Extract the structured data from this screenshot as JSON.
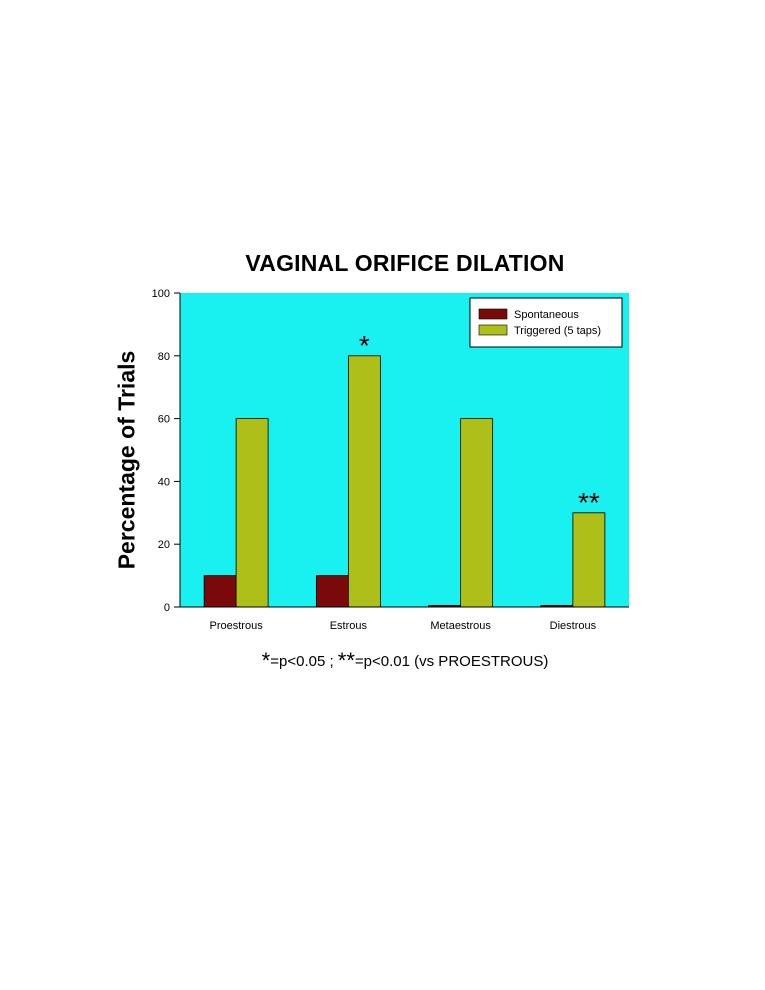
{
  "chart_data": {
    "type": "bar",
    "title": "VAGINAL ORIFICE DILATION",
    "xlabel": "",
    "ylabel": "Percentage of Trials",
    "categories": [
      "Proestrous",
      "Estrous",
      "Metaestrous",
      "Diestrous"
    ],
    "series": [
      {
        "name": "Spontaneous",
        "color": "#7a0a0a",
        "values": [
          10,
          10,
          0.5,
          0.5
        ]
      },
      {
        "name": "Triggered (5 taps)",
        "color": "#aebf1a",
        "values": [
          60,
          80,
          60,
          30
        ]
      }
    ],
    "ylim": [
      0,
      100
    ],
    "yticks": [
      0,
      20,
      40,
      60,
      80,
      100
    ],
    "plot_background": "#19f0f0",
    "grid": false,
    "legend_position": "top-right",
    "annotations": [
      {
        "category": "Estrous",
        "series": "Triggered (5 taps)",
        "text": "*"
      },
      {
        "category": "Diestrous",
        "series": "Triggered (5 taps)",
        "text": "**"
      }
    ]
  },
  "footnote": {
    "sig1": "*",
    "text1": "=p<0.05 ;  ",
    "sig2": "**",
    "text2": "=p<0.01  (vs PROESTROUS)"
  }
}
